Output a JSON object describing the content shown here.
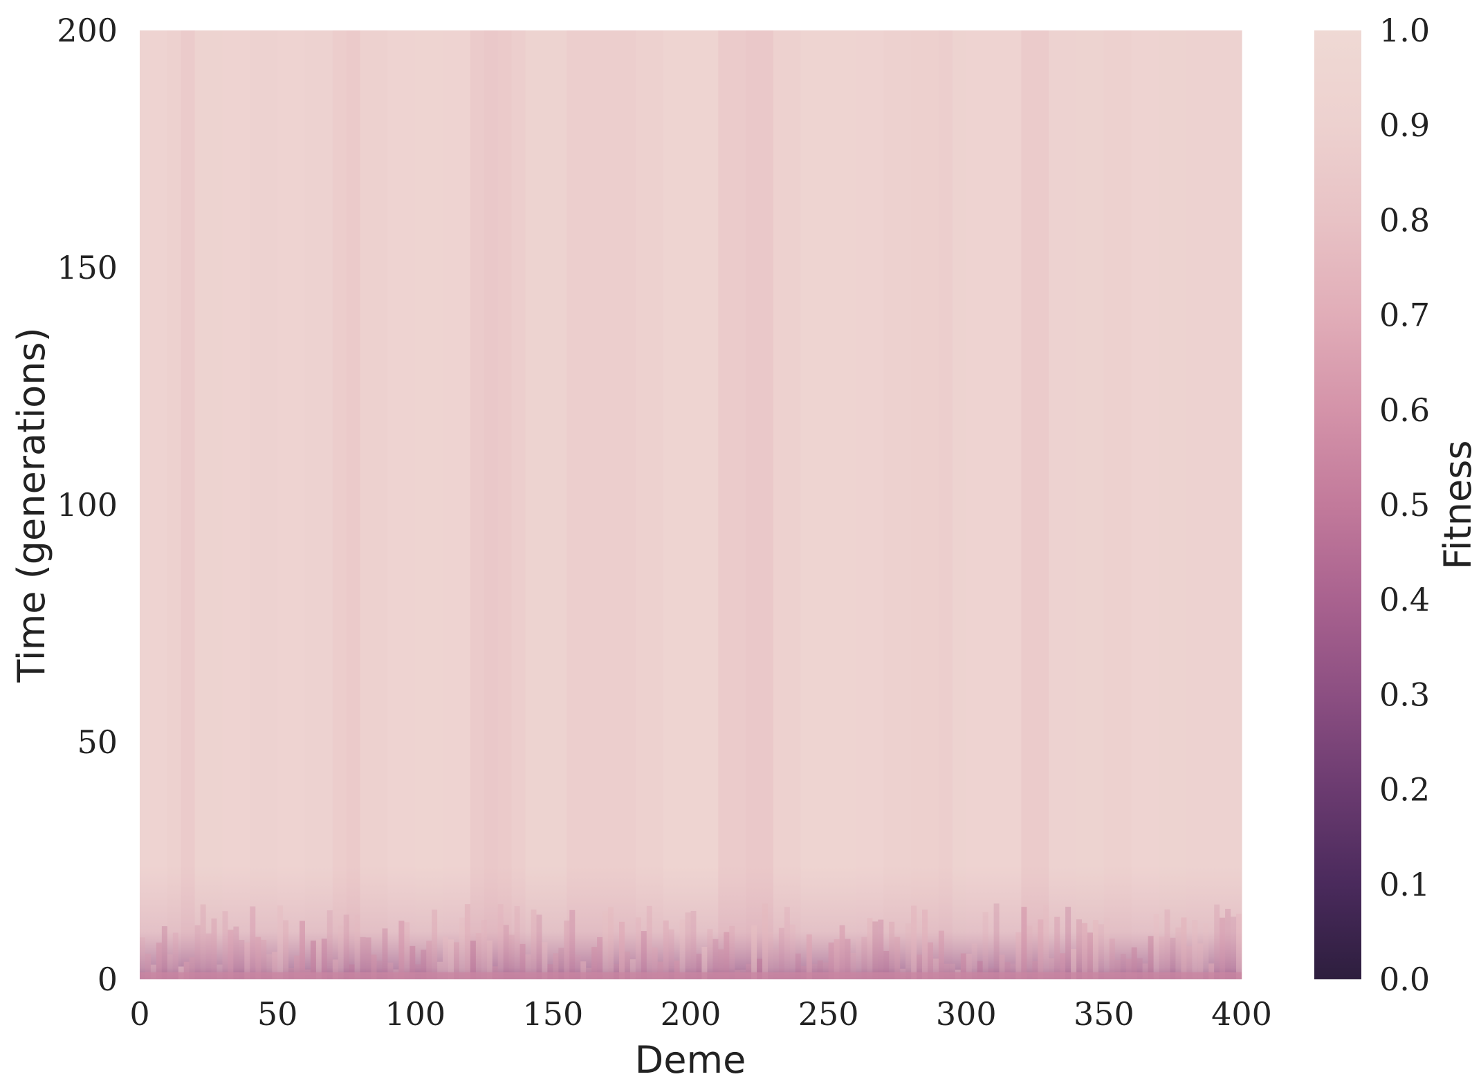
{
  "chart_data": {
    "type": "heatmap",
    "title": "",
    "xlabel": "Deme",
    "ylabel": "Time (generations)",
    "xlim": [
      0,
      400
    ],
    "ylim": [
      0,
      200
    ],
    "xticks": [
      0,
      50,
      100,
      150,
      200,
      250,
      300,
      350,
      400
    ],
    "yticks": [
      0,
      50,
      100,
      150,
      200
    ],
    "colorbar": {
      "label": "Fitness",
      "range": [
        0.0,
        1.0
      ],
      "ticks": [
        "0.0",
        "0.1",
        "0.2",
        "0.3",
        "0.4",
        "0.5",
        "0.6",
        "0.7",
        "0.8",
        "0.9",
        "1.0"
      ],
      "colors": [
        "#2d1e3e",
        "#4a2a5c",
        "#6b3b70",
        "#8c4f82",
        "#a9628f",
        "#c27a9b",
        "#d493a9",
        "#e1adb8",
        "#e8c2c5",
        "#edd1cf",
        "#efd9d4"
      ]
    },
    "grid": false,
    "fitness_profile": {
      "deme": [
        0,
        10,
        15,
        20,
        30,
        40,
        50,
        60,
        70,
        75,
        80,
        90,
        100,
        110,
        120,
        125,
        130,
        135,
        140,
        150,
        155,
        160,
        170,
        180,
        190,
        200,
        210,
        220,
        230,
        240,
        250,
        260,
        270,
        280,
        290,
        295,
        300,
        310,
        320,
        325,
        330,
        340,
        350,
        360,
        370,
        380,
        390,
        400
      ],
      "fitness_late": [
        0.93,
        0.9,
        0.86,
        0.92,
        0.93,
        0.91,
        0.93,
        0.91,
        0.87,
        0.85,
        0.9,
        0.93,
        0.94,
        0.93,
        0.86,
        0.84,
        0.85,
        0.88,
        0.92,
        0.92,
        0.88,
        0.88,
        0.88,
        0.9,
        0.94,
        0.94,
        0.86,
        0.84,
        0.9,
        0.94,
        0.94,
        0.93,
        0.9,
        0.89,
        0.88,
        0.92,
        0.93,
        0.93,
        0.86,
        0.86,
        0.91,
        0.92,
        0.9,
        0.93,
        0.92,
        0.91,
        0.91,
        0.92
      ],
      "fitness_initial": 0.55
    }
  }
}
